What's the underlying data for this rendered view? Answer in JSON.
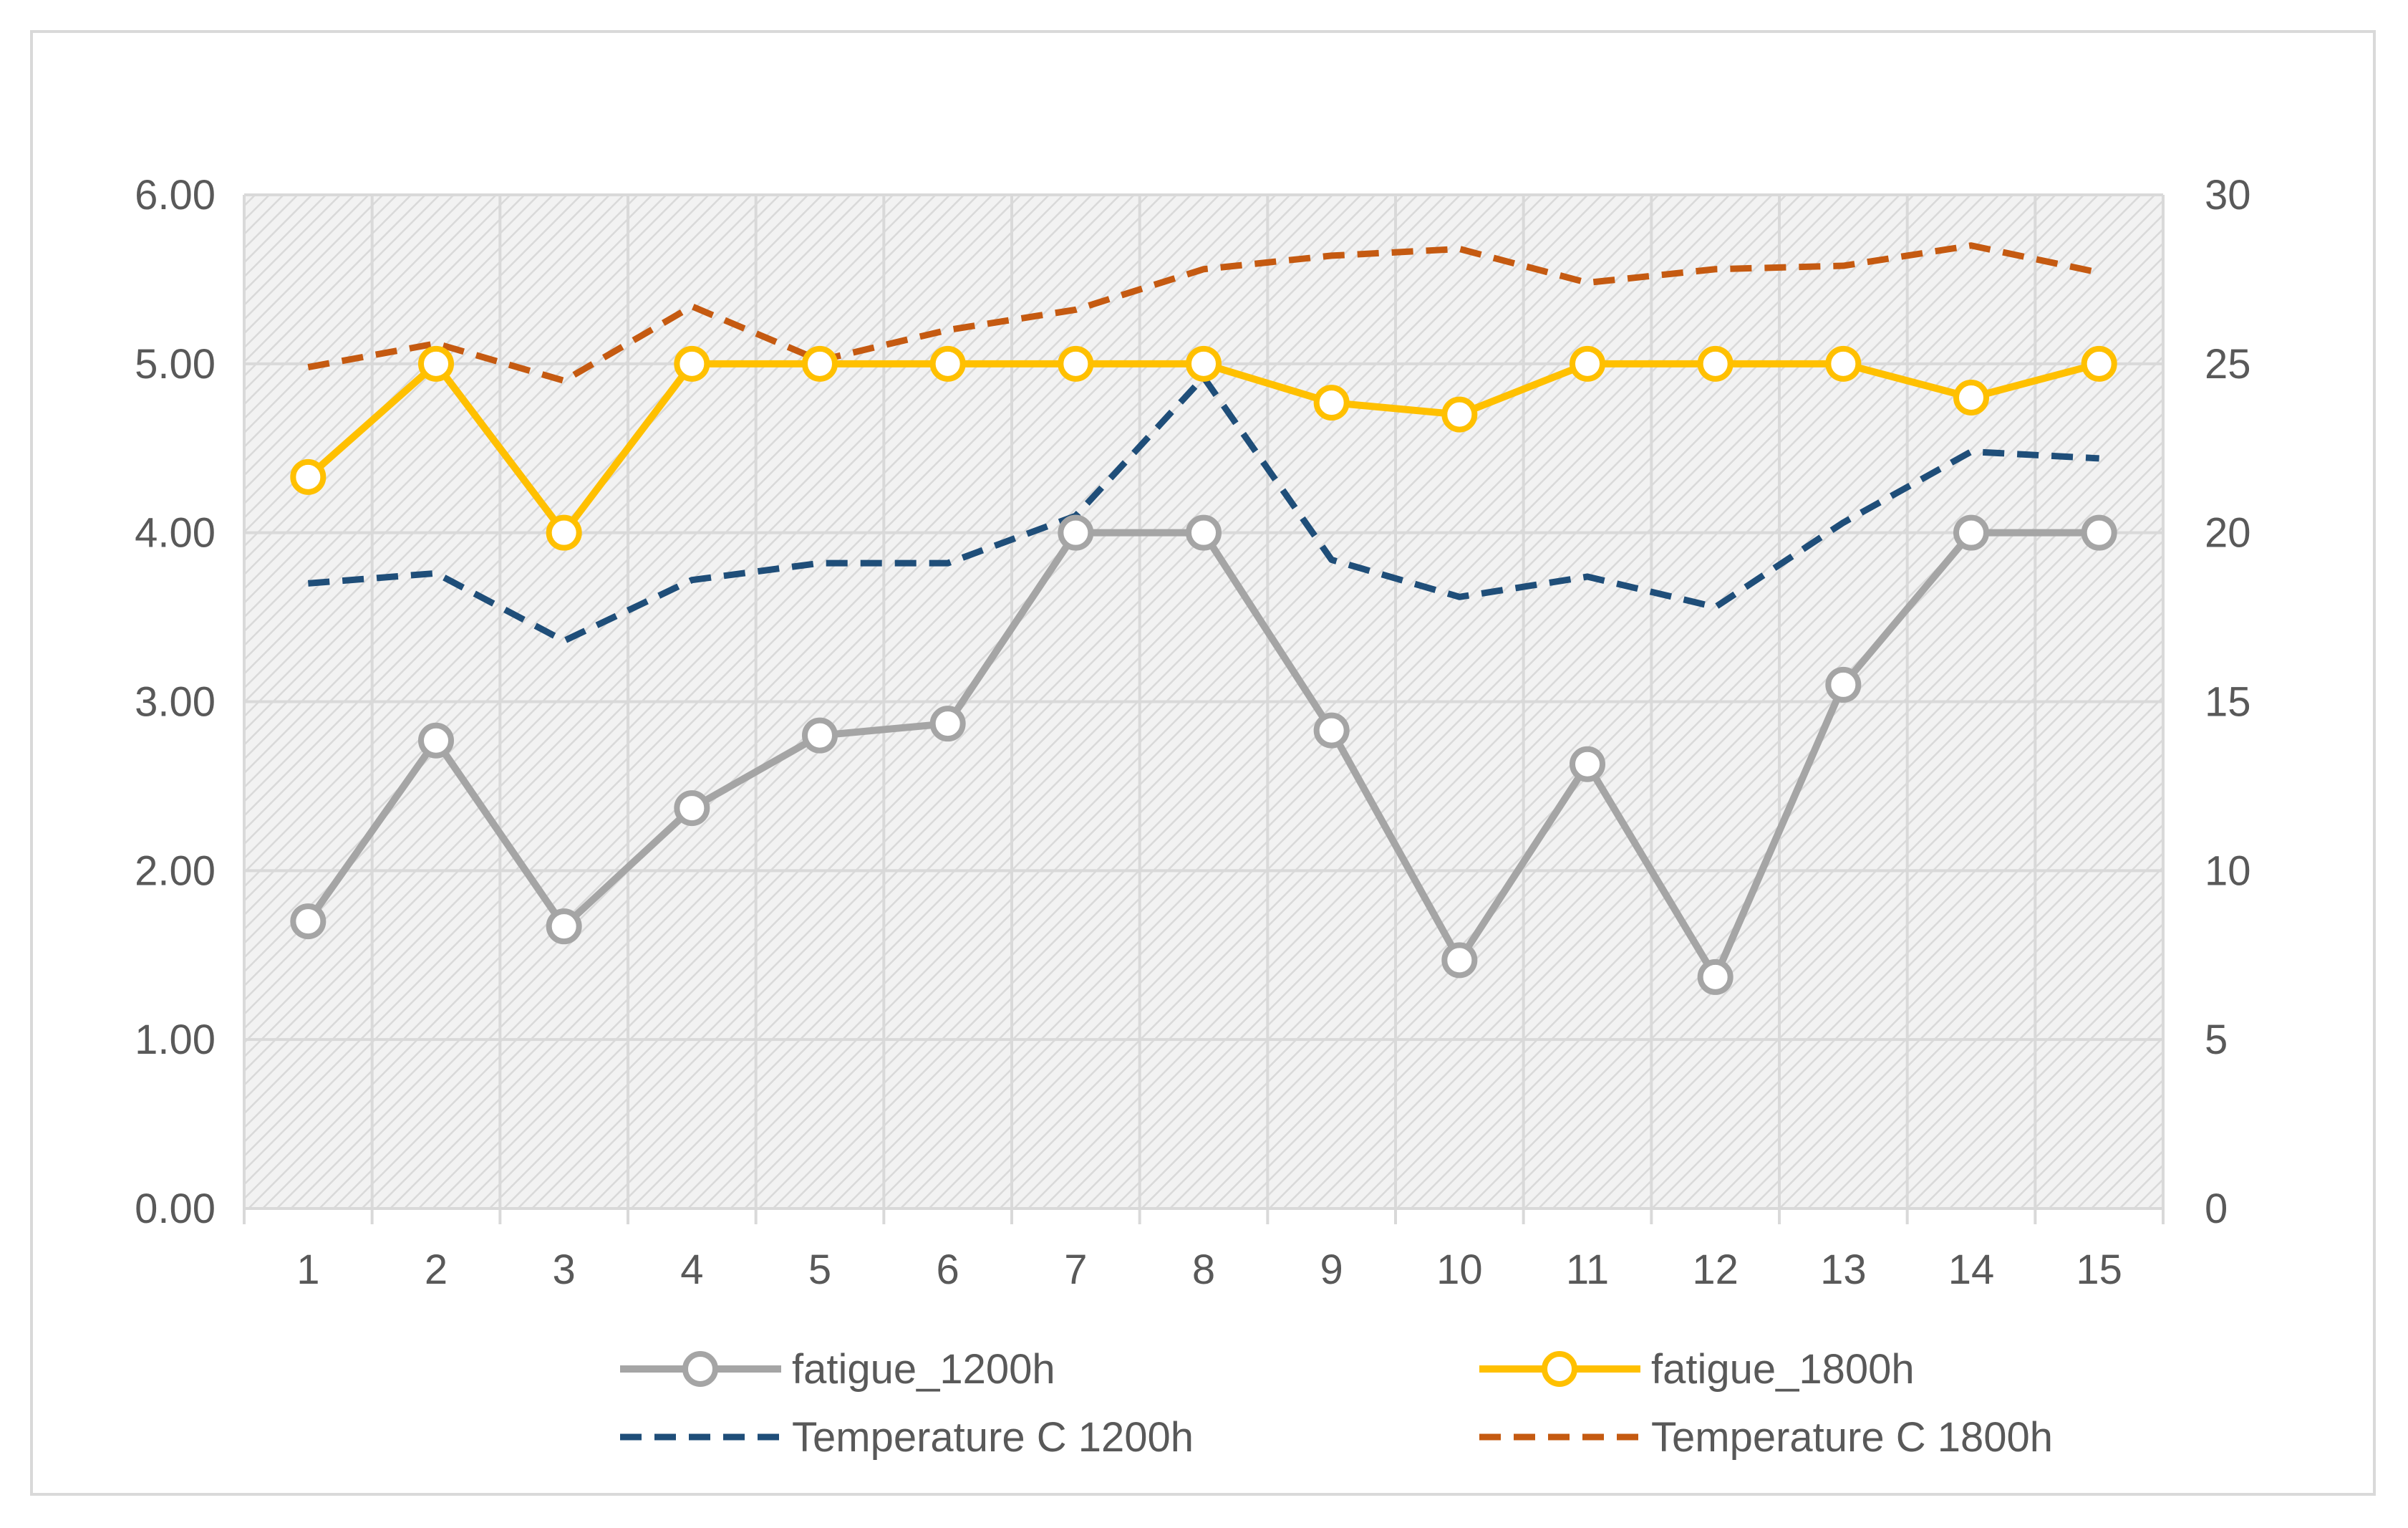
{
  "chart_data": {
    "type": "line",
    "title": "",
    "xlabel": "",
    "ylabel": "",
    "y2label": "",
    "categories": [
      "1",
      "2",
      "3",
      "4",
      "5",
      "6",
      "7",
      "8",
      "9",
      "10",
      "11",
      "12",
      "13",
      "14",
      "15"
    ],
    "y_ticks": [
      "0.00",
      "1.00",
      "2.00",
      "3.00",
      "4.00",
      "5.00",
      "6.00"
    ],
    "y2_ticks": [
      "0",
      "5",
      "10",
      "15",
      "20",
      "25",
      "30"
    ],
    "ylim": [
      0,
      6
    ],
    "y2lim": [
      0,
      30
    ],
    "grid": true,
    "legend_position": "bottom",
    "series": [
      {
        "name": "fatigue_1200h",
        "axis": "left",
        "style": "line-circle-markers",
        "color": "#a5a5a5",
        "values": [
          1.7,
          2.77,
          1.67,
          2.37,
          2.8,
          2.87,
          4.0,
          4.0,
          2.83,
          1.47,
          2.63,
          1.37,
          3.1,
          4.0,
          4.0
        ]
      },
      {
        "name": "fatigue_1800h",
        "axis": "left",
        "style": "line-circle-markers",
        "color": "#ffc000",
        "values": [
          4.33,
          5.0,
          4.0,
          5.0,
          5.0,
          5.0,
          5.0,
          5.0,
          4.77,
          4.7,
          5.0,
          5.0,
          5.0,
          4.8,
          5.0
        ]
      },
      {
        "name": "Temperature C 1200h",
        "axis": "right",
        "style": "dashed",
        "color": "#1f4e79",
        "values": [
          18.5,
          18.8,
          16.8,
          18.6,
          19.1,
          19.1,
          20.5,
          24.6,
          19.2,
          18.1,
          18.7,
          17.8,
          20.3,
          22.4,
          22.2
        ]
      },
      {
        "name": "Temperature  C 1800h",
        "axis": "right",
        "style": "dashed",
        "color": "#c55a11",
        "values": [
          24.9,
          25.6,
          24.5,
          26.7,
          25.1,
          26.0,
          26.6,
          27.8,
          28.2,
          28.4,
          27.4,
          27.8,
          27.9,
          28.5,
          27.7
        ]
      }
    ]
  },
  "colors": {
    "plot_background": "#f2f2f2",
    "hatch": "#d9d9d9",
    "gridline": "#d9d9d9",
    "axis_line": "#d9d9d9",
    "tick_text": "#595959",
    "frame_border": "#d9d9d9"
  }
}
